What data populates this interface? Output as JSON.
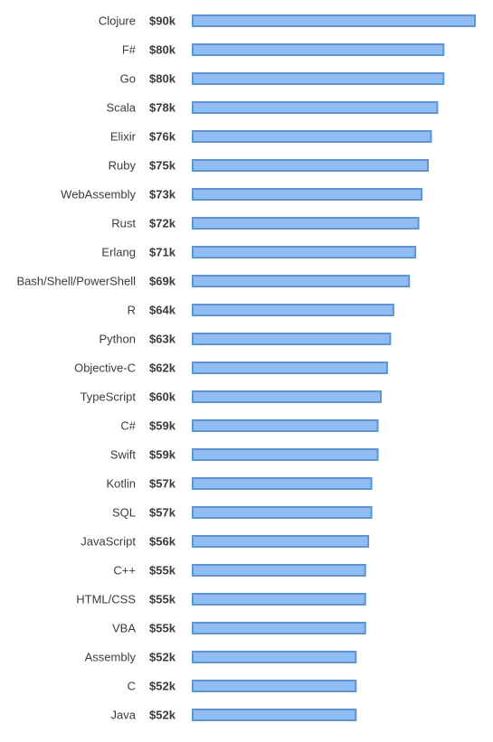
{
  "chart_data": {
    "type": "bar",
    "orientation": "horizontal",
    "title": "",
    "xlabel": "",
    "ylabel": "",
    "xlim": [
      0,
      90
    ],
    "grid": false,
    "legend": "none",
    "bar_color": "#8fbcf2",
    "bar_border_color": "#5e95d8",
    "text_color": "#3b3b3b",
    "categories": [
      "Clojure",
      "F#",
      "Go",
      "Scala",
      "Elixir",
      "Ruby",
      "WebAssembly",
      "Rust",
      "Erlang",
      "Bash/Shell/PowerShell",
      "R",
      "Python",
      "Objective-C",
      "TypeScript",
      "C#",
      "Swift",
      "Kotlin",
      "SQL",
      "JavaScript",
      "C++",
      "HTML/CSS",
      "VBA",
      "Assembly",
      "C",
      "Java"
    ],
    "values": [
      90,
      80,
      80,
      78,
      76,
      75,
      73,
      72,
      71,
      69,
      64,
      63,
      62,
      60,
      59,
      59,
      57,
      57,
      56,
      55,
      55,
      55,
      52,
      52,
      52
    ],
    "value_labels": [
      "$90k",
      "$80k",
      "$80k",
      "$78k",
      "$76k",
      "$75k",
      "$73k",
      "$72k",
      "$71k",
      "$69k",
      "$64k",
      "$63k",
      "$62k",
      "$60k",
      "$59k",
      "$59k",
      "$57k",
      "$57k",
      "$56k",
      "$55k",
      "$55k",
      "$55k",
      "$52k",
      "$52k",
      "$52k"
    ]
  }
}
